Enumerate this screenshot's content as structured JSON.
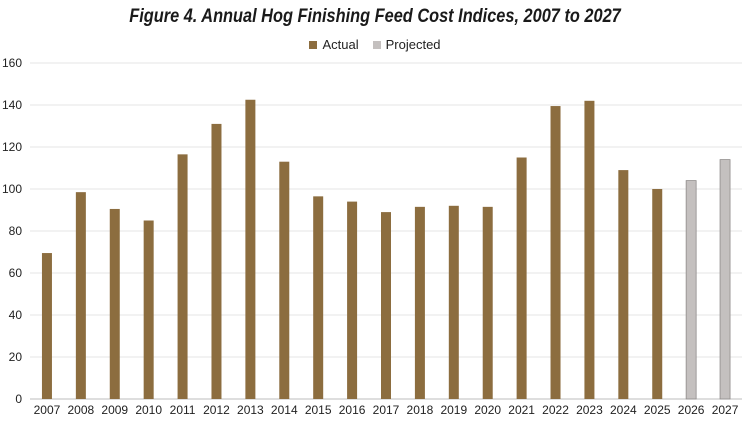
{
  "chart_data": {
    "type": "bar",
    "title": "Figure 4.  Annual Hog Finishing Feed Cost Indices, 2007 to 2027",
    "categories": [
      "2007",
      "2008",
      "2009",
      "2010",
      "2011",
      "2012",
      "2013",
      "2014",
      "2015",
      "2016",
      "2017",
      "2018",
      "2019",
      "2020",
      "2021",
      "2022",
      "2023",
      "2024",
      "2025",
      "2026",
      "2027"
    ],
    "series": [
      {
        "name": "Actual",
        "color": "#8c6d3f",
        "values": [
          69.5,
          98.5,
          90.5,
          85,
          116.5,
          131,
          142.5,
          113,
          96.5,
          94,
          89,
          91.5,
          92,
          91.5,
          115,
          139.5,
          142,
          109,
          100,
          null,
          null
        ]
      },
      {
        "name": "Projected",
        "color": "#c4c0bf",
        "values": [
          null,
          null,
          null,
          null,
          null,
          null,
          null,
          null,
          null,
          null,
          null,
          null,
          null,
          null,
          null,
          null,
          null,
          null,
          null,
          104,
          114
        ]
      }
    ],
    "yticks": [
      0,
      20,
      40,
      60,
      80,
      100,
      120,
      140,
      160
    ],
    "ylim": [
      0,
      160
    ],
    "grid": true,
    "legend_position": "top-center"
  }
}
